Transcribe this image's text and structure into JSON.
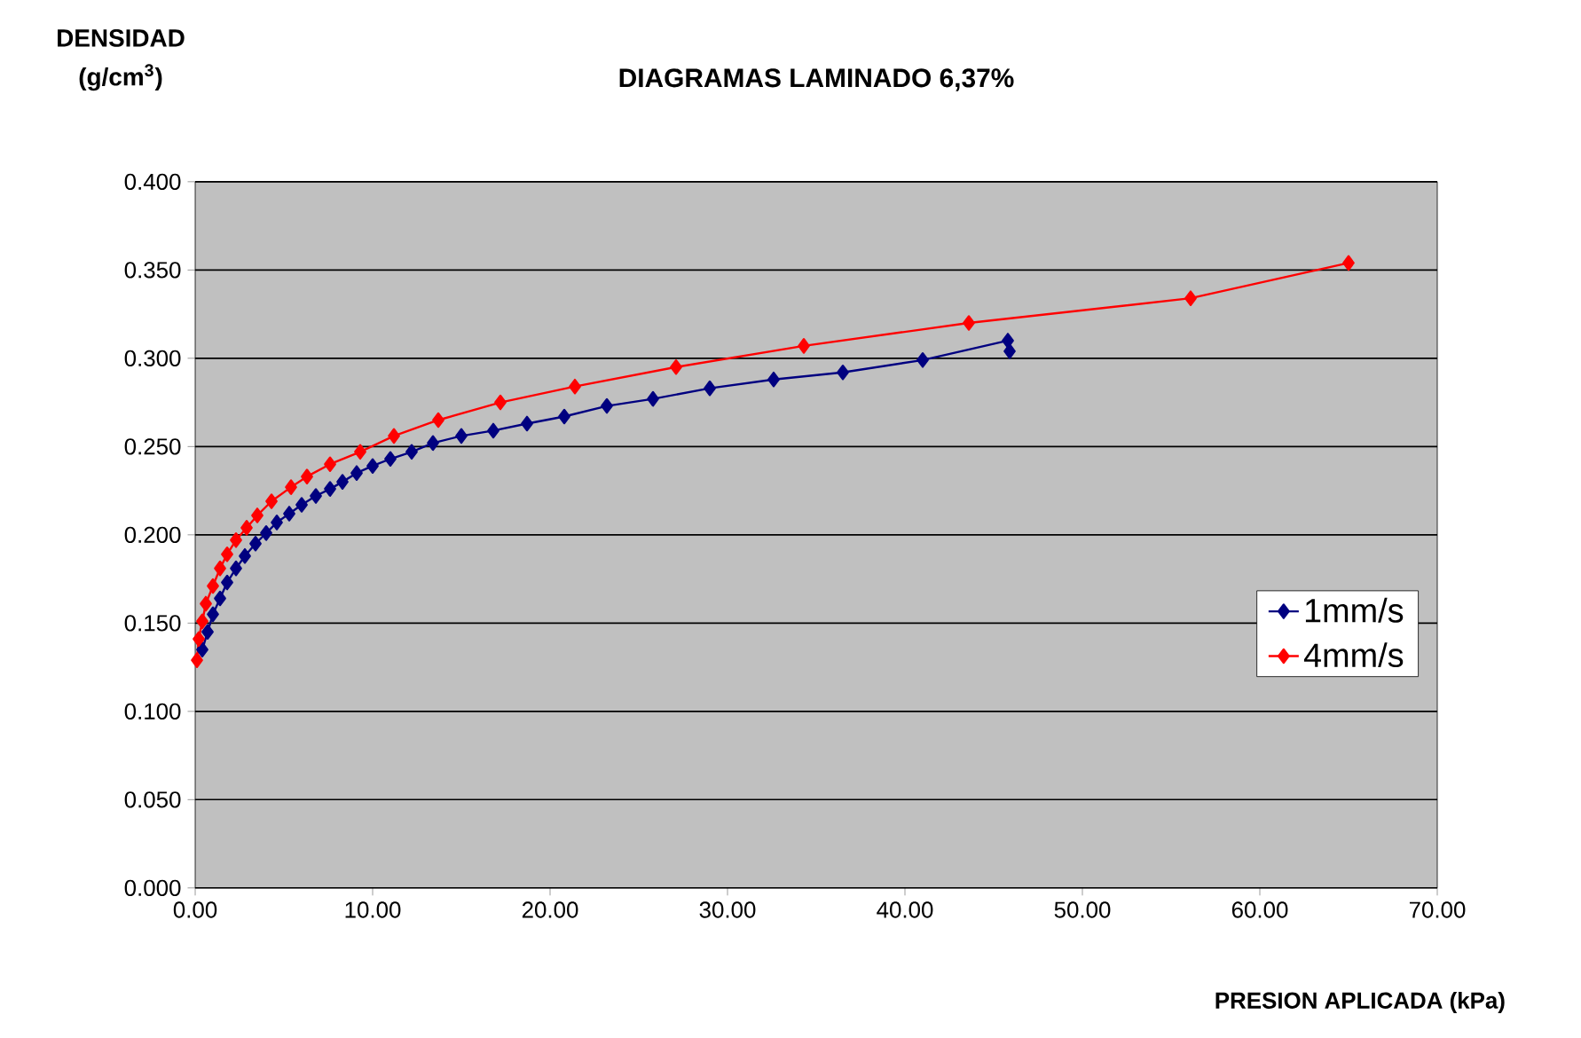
{
  "chart_data": {
    "type": "line",
    "title": "DIAGRAMAS LAMINADO 6,37%",
    "ylabel": "DENSIDAD (g/cm$^{3}$)",
    "xlabel": "PRESION APLICADA (kPa)",
    "xlim": [
      0,
      70
    ],
    "ylim": [
      0,
      0.4
    ],
    "xticks": [
      {
        "value": 0,
        "label": "0.00"
      },
      {
        "value": 10,
        "label": "10.00"
      },
      {
        "value": 20,
        "label": "20.00"
      },
      {
        "value": 30,
        "label": "30.00"
      },
      {
        "value": 40,
        "label": "40.00"
      },
      {
        "value": 50,
        "label": "50.00"
      },
      {
        "value": 60,
        "label": "60.00"
      },
      {
        "value": 70,
        "label": "70.00"
      }
    ],
    "yticks": [
      {
        "value": 0,
        "label": "0.000"
      },
      {
        "value": 0.05,
        "label": "0.050"
      },
      {
        "value": 0.1,
        "label": "0.100"
      },
      {
        "value": 0.15,
        "label": "0.150"
      },
      {
        "value": 0.2,
        "label": "0.200"
      },
      {
        "value": 0.25,
        "label": "0.250"
      },
      {
        "value": 0.3,
        "label": "0.300"
      },
      {
        "value": 0.35,
        "label": "0.350"
      },
      {
        "value": 0.4,
        "label": "0.400"
      }
    ],
    "grid": "y",
    "legend": "right",
    "marker": "diamond",
    "line_style": "solid",
    "series": [
      {
        "name": "1mm/s",
        "color": "#000080",
        "x": [
          0.4,
          0.7,
          1.0,
          1.4,
          1.8,
          2.3,
          2.8,
          3.4,
          4.0,
          4.6,
          5.3,
          6.0,
          6.8,
          7.6,
          8.3,
          9.1,
          10.0,
          11.0,
          12.2,
          13.4,
          15.0,
          16.8,
          18.7,
          20.8,
          23.2,
          25.8,
          29.0,
          32.6,
          36.5,
          41.0,
          45.8,
          45.9
        ],
        "values": [
          0.135,
          0.145,
          0.155,
          0.164,
          0.173,
          0.181,
          0.188,
          0.195,
          0.201,
          0.207,
          0.212,
          0.217,
          0.222,
          0.226,
          0.23,
          0.235,
          0.239,
          0.243,
          0.247,
          0.252,
          0.256,
          0.259,
          0.263,
          0.267,
          0.273,
          0.277,
          0.283,
          0.288,
          0.292,
          0.299,
          0.31,
          0.304
        ]
      },
      {
        "name": "4mm/s",
        "color": "#ff0000",
        "x": [
          0.1,
          0.2,
          0.4,
          0.6,
          1.0,
          1.4,
          1.8,
          2.3,
          2.9,
          3.5,
          4.3,
          5.4,
          6.3,
          7.6,
          9.3,
          11.2,
          13.7,
          17.2,
          21.4,
          27.1,
          34.3,
          43.6,
          56.1,
          65.0
        ],
        "values": [
          0.129,
          0.141,
          0.151,
          0.161,
          0.171,
          0.181,
          0.189,
          0.197,
          0.204,
          0.211,
          0.219,
          0.227,
          0.233,
          0.24,
          0.247,
          0.256,
          0.265,
          0.275,
          0.284,
          0.295,
          0.307,
          0.32,
          0.334,
          0.354
        ]
      }
    ]
  }
}
